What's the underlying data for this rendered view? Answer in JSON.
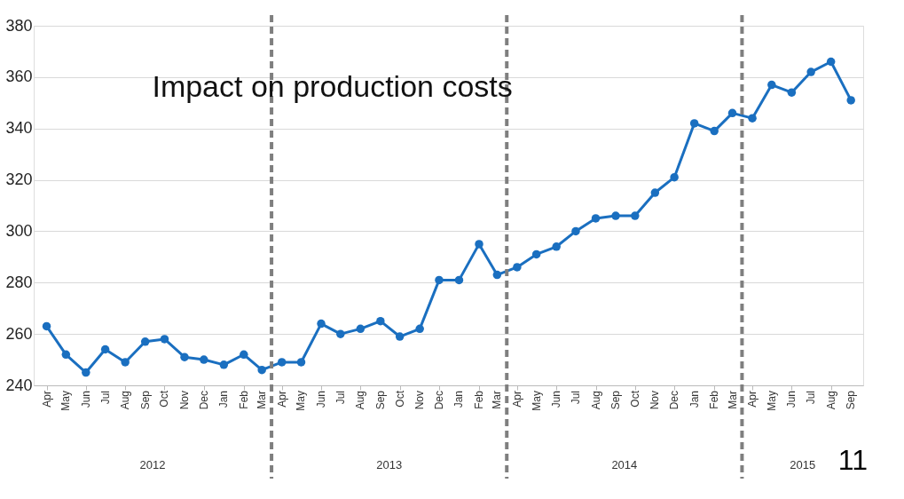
{
  "chart_data": {
    "type": "line",
    "title": "Impact on production costs",
    "x": [
      "2012-04",
      "2012-05",
      "2012-06",
      "2012-07",
      "2012-08",
      "2012-09",
      "2012-10",
      "2012-11",
      "2012-12",
      "2013-01",
      "2013-02",
      "2013-03",
      "2013-04",
      "2013-05",
      "2013-06",
      "2013-07",
      "2013-08",
      "2013-09",
      "2013-10",
      "2013-11",
      "2013-12",
      "2014-01",
      "2014-02",
      "2014-03",
      "2014-04",
      "2014-05",
      "2014-06",
      "2014-07",
      "2014-08",
      "2014-09",
      "2014-10",
      "2014-11",
      "2014-12",
      "2015-01",
      "2015-02",
      "2015-03",
      "2015-04",
      "2015-05",
      "2015-06",
      "2015-07",
      "2015-08",
      "2015-09"
    ],
    "series": [
      {
        "color": "#1a6fc0",
        "values": [
          263,
          252,
          245,
          254,
          249,
          257,
          258,
          251,
          250,
          248,
          252,
          246,
          249,
          249,
          264,
          260,
          262,
          265,
          259,
          262,
          281,
          281,
          295,
          283,
          286,
          291,
          294,
          300,
          305,
          306,
          306,
          315,
          321,
          342,
          339,
          346,
          344,
          357,
          354,
          362,
          366,
          351
        ]
      }
    ],
    "xlim": [
      "2012-03-12",
      "2015-09-20"
    ],
    "xticks": [
      {
        "value": "2012-04",
        "label": "Apr"
      },
      {
        "value": "2012-05",
        "label": "May"
      },
      {
        "value": "2012-06",
        "label": "Jun"
      },
      {
        "value": "2012-07",
        "label": "Jul"
      },
      {
        "value": "2012-08",
        "label": "Aug"
      },
      {
        "value": "2012-09",
        "label": "Sep"
      },
      {
        "value": "2012-10",
        "label": "Oct"
      },
      {
        "value": "2012-11",
        "label": "Nov"
      },
      {
        "value": "2012-12",
        "label": "Dec"
      },
      {
        "value": "2013-01",
        "label": "Jan"
      },
      {
        "value": "2013-02",
        "label": "Feb"
      },
      {
        "value": "2013-03",
        "label": "Mar"
      },
      {
        "value": "2013-04",
        "label": "Apr"
      },
      {
        "value": "2013-05",
        "label": "May"
      },
      {
        "value": "2013-06",
        "label": "Jun"
      },
      {
        "value": "2013-07",
        "label": "Jul"
      },
      {
        "value": "2013-08",
        "label": "Aug"
      },
      {
        "value": "2013-09",
        "label": "Sep"
      },
      {
        "value": "2013-10",
        "label": "Oct"
      },
      {
        "value": "2013-11",
        "label": "Nov"
      },
      {
        "value": "2013-12",
        "label": "Dec"
      },
      {
        "value": "2014-01",
        "label": "Jan"
      },
      {
        "value": "2014-02",
        "label": "Feb"
      },
      {
        "value": "2014-03",
        "label": "Mar"
      },
      {
        "value": "2014-04",
        "label": "Apr"
      },
      {
        "value": "2014-05",
        "label": "May"
      },
      {
        "value": "2014-06",
        "label": "Jun"
      },
      {
        "value": "2014-07",
        "label": "Jul"
      },
      {
        "value": "2014-08",
        "label": "Aug"
      },
      {
        "value": "2014-09",
        "label": "Sep"
      },
      {
        "value": "2014-10",
        "label": "Oct"
      },
      {
        "value": "2014-11",
        "label": "Nov"
      },
      {
        "value": "2014-12",
        "label": "Dec"
      },
      {
        "value": "2015-01",
        "label": "Jan"
      },
      {
        "value": "2015-02",
        "label": "Feb"
      },
      {
        "value": "2015-03",
        "label": "Mar"
      },
      {
        "value": "2015-04",
        "label": "Apr"
      },
      {
        "value": "2015-05",
        "label": "May"
      },
      {
        "value": "2015-06",
        "label": "Jun"
      },
      {
        "value": "2015-07",
        "label": "Jul"
      },
      {
        "value": "2015-08",
        "label": "Aug"
      },
      {
        "value": "2015-09",
        "label": "Sep"
      }
    ],
    "ylim": [
      240,
      380
    ],
    "yticks": [
      240,
      260,
      280,
      300,
      320,
      340,
      360,
      380
    ],
    "grid": "y",
    "marker": "circle",
    "line_style": "solid",
    "ref_lines": [
      {
        "axis": "x",
        "value": "2013-03-16",
        "color": "#7f7f7f",
        "line_style": "dashed"
      },
      {
        "axis": "x",
        "value": "2014-03-16",
        "color": "#7f7f7f",
        "line_style": "dashed"
      },
      {
        "axis": "x",
        "value": "2015-03-16",
        "color": "#7f7f7f",
        "line_style": "dashed"
      }
    ],
    "annotations": [
      "2012",
      "2013",
      "2014",
      "2015",
      "11"
    ]
  }
}
